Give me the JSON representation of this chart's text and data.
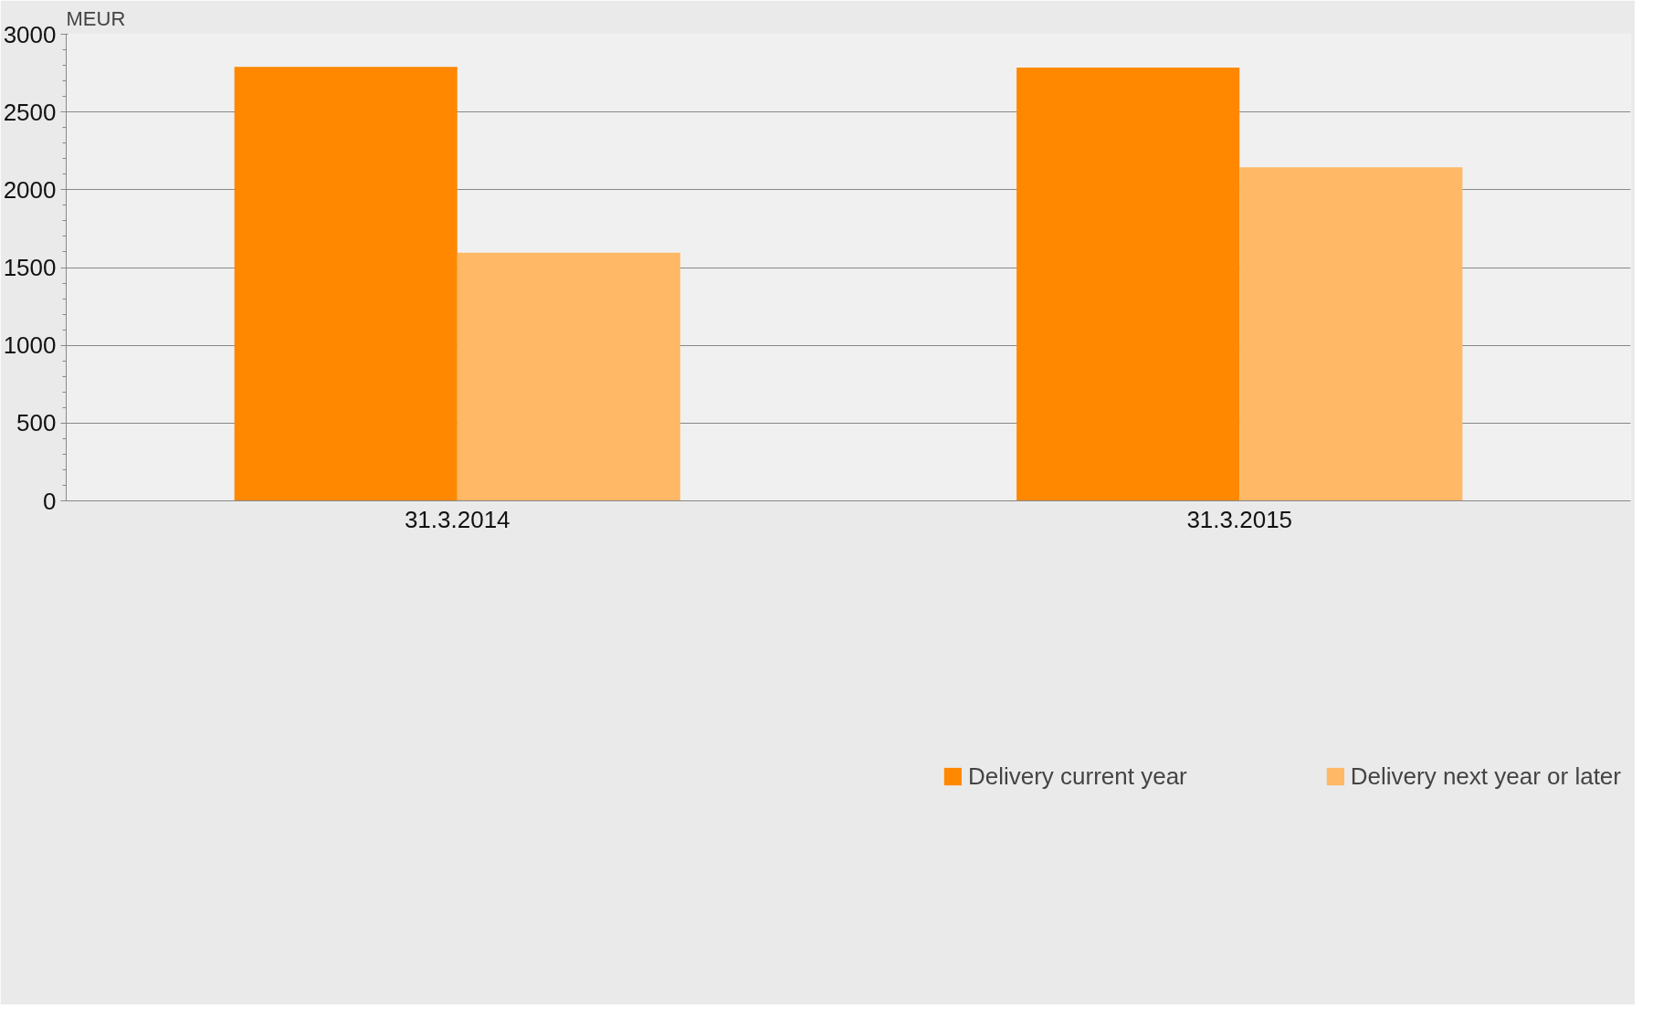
{
  "chart_data": {
    "type": "bar",
    "ylabel": "MEUR",
    "categories": [
      "31.3.2014",
      "31.3.2015"
    ],
    "series": [
      {
        "name": "Delivery current year",
        "color": "#ff8800",
        "values": [
          2790,
          2785
        ]
      },
      {
        "name": "Delivery next year or later",
        "color": "#ffb866",
        "values": [
          1595,
          2145
        ]
      }
    ],
    "ylim": [
      0,
      3000
    ],
    "yticks": [
      0,
      500,
      1000,
      1500,
      2000,
      2500,
      3000
    ],
    "grid": "y",
    "legend": "bottom"
  }
}
